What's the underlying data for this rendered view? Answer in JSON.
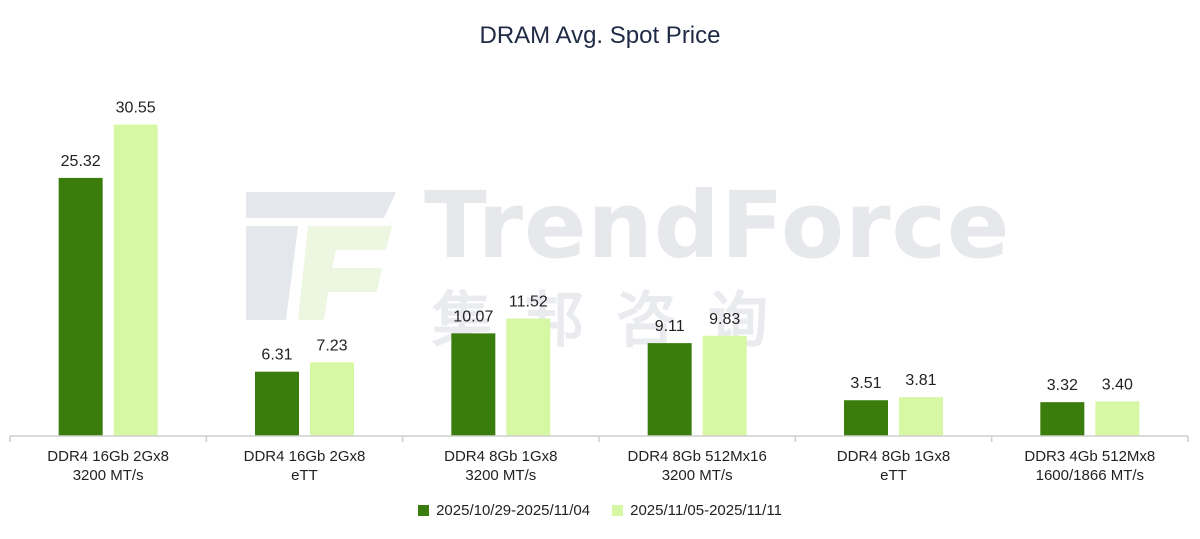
{
  "watermark": {
    "brand": "TrendForce",
    "subtext": "集邦咨询"
  },
  "chart_data": {
    "type": "bar",
    "title": "DRAM Avg. Spot Price",
    "xlabel": "",
    "ylabel": "",
    "ylim": [
      0,
      31
    ],
    "grid": false,
    "legend_position": "bottom",
    "categories": [
      [
        "DDR4 16Gb 2Gx8",
        "3200 MT/s"
      ],
      [
        "DDR4 16Gb 2Gx8",
        "eTT"
      ],
      [
        "DDR4 8Gb 1Gx8",
        "3200 MT/s"
      ],
      [
        "DDR4 8Gb 512Mx16",
        "3200 MT/s"
      ],
      [
        "DDR4 8Gb 1Gx8",
        "eTT"
      ],
      [
        "DDR3 4Gb 512Mx8",
        "1600/1866 MT/s"
      ]
    ],
    "series": [
      {
        "name": "2025/10/29-2025/11/04",
        "color": "#3a7d0c",
        "values": [
          25.32,
          6.31,
          10.07,
          9.11,
          3.51,
          3.32
        ],
        "labels": [
          "25.32",
          "6.31",
          "10.07",
          "9.11",
          "3.51",
          "3.32"
        ]
      },
      {
        "name": "2025/11/05-2025/11/11",
        "color": "#d6f7a3",
        "values": [
          30.55,
          7.23,
          11.52,
          9.83,
          3.81,
          3.4
        ],
        "labels": [
          "30.55",
          "7.23",
          "11.52",
          "9.83",
          "3.81",
          "3.40"
        ]
      }
    ]
  }
}
